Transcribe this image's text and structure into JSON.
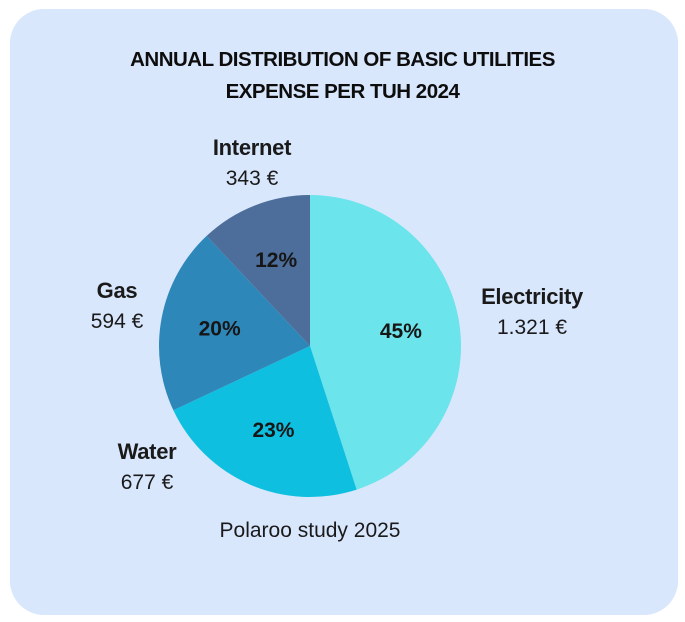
{
  "chart_data": {
    "type": "pie",
    "title": "ANNUAL DISTRIBUTION OF BASIC UTILITIES",
    "title_line2": "EXPENSE PER TUH 2024",
    "source": "Polaroo study 2025",
    "slices": [
      {
        "name": "Electricity",
        "value_text": "1.321 €",
        "percent": 45,
        "percent_label": "45%",
        "color": "#6be4eb"
      },
      {
        "name": "Water",
        "value_text": "677 €",
        "percent": 23,
        "percent_label": "23%",
        "color": "#0ebfe0"
      },
      {
        "name": "Gas",
        "value_text": "594 €",
        "percent": 20,
        "percent_label": "20%",
        "color": "#2d87b8"
      },
      {
        "name": "Internet",
        "value_text": "343 €",
        "percent": 12,
        "percent_label": "12%",
        "color": "#4d6e9b"
      }
    ]
  }
}
